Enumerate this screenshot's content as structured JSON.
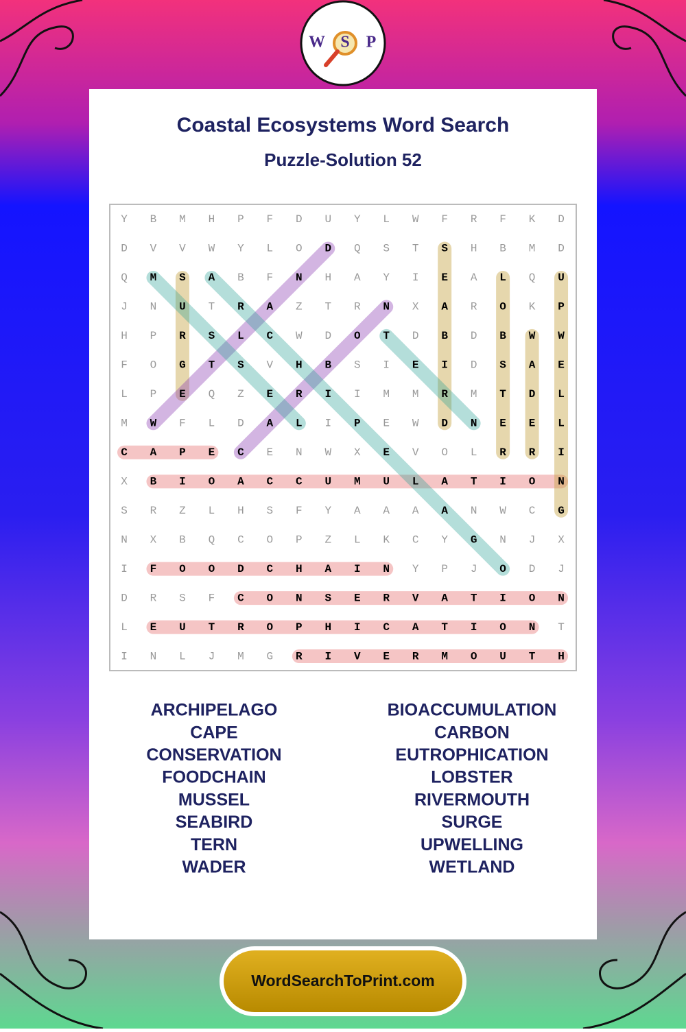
{
  "logo": [
    "W",
    "S",
    "P"
  ],
  "title": "Coastal Ecosystems Word Search",
  "subtitle": "Puzzle-Solution 52",
  "grid": {
    "rows": [
      "YBMHPFDUYLWFRFKD",
      "DVVWYLODQSTSHBMD",
      "QMSABFNHAYIEALQU",
      "JNUTRAZTRNXAROKP",
      "HPRSLCWDOTDBDBWW",
      "FOGTSVHBSIEIDSAE",
      "LPEQZERIIMMRMTDL",
      "MWFLDALIPEWDNEEL",
      "CAPECENWXEVOLRRI",
      "XBIOACCUMULATION",
      "SRZLHSFYAAAANWCG",
      "NXBQCOPZLKCYGNJX",
      "IFOODCHAINYPJODJ",
      "DRSFCONSERVATION",
      "LEUTROPHICATIONT",
      "INLJMGRIVERMOUTH"
    ]
  },
  "words": [
    [
      "ARCHIPELAGO",
      "CAPE",
      "CONSERVATION",
      "FOODCHAIN",
      "MUSSEL",
      "SEABIRD",
      "TERN",
      "WADER"
    ],
    [
      "BIOACCUMULATION",
      "CARBON",
      "EUTROPHICATION",
      "LOBSTER",
      "RIVERMOUTH",
      "SURGE",
      "UPWELLING",
      "WETLAND"
    ]
  ],
  "footer": "WordSearchToPrint.com"
}
